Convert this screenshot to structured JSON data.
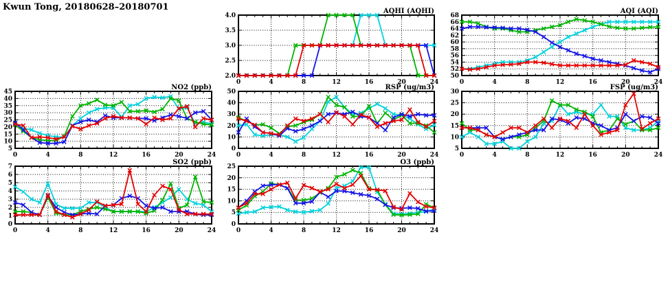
{
  "page_title": "Kwun Tong, 20180628–20180701",
  "colors": {
    "red": "#e60000",
    "green": "#00b400",
    "blue": "#1414e6",
    "cyan": "#00d2dc",
    "axis": "#000000"
  },
  "x_axis": {
    "min": 0,
    "max": 24,
    "major_ticks": [
      0,
      4,
      8,
      12,
      16,
      20,
      24
    ],
    "minor_step": 1,
    "unit": "hour"
  },
  "chart_data": [
    {
      "id": "aqhi",
      "type": "line",
      "title": "AQHI (AQHI)",
      "ylim": [
        2,
        4
      ],
      "yticks": [
        2,
        2.5,
        3,
        3.5,
        4
      ],
      "ytick_labels": [
        "2.0",
        "2.5",
        "3.0",
        "3.5",
        "4.0"
      ],
      "grid": "dotted",
      "legend": "none",
      "series": [
        {
          "name": "cyan",
          "color_key": "cyan",
          "values": [
            null,
            null,
            null,
            null,
            null,
            null,
            null,
            null,
            null,
            null,
            null,
            null,
            null,
            3,
            3,
            4,
            4,
            4,
            3,
            3,
            3,
            3,
            3,
            3,
            3
          ]
        },
        {
          "name": "green",
          "color_key": "green",
          "values": [
            2,
            2,
            2,
            2,
            2,
            2,
            2,
            3,
            3,
            3,
            3,
            4,
            4,
            4,
            4,
            3,
            3,
            3,
            3,
            3,
            3,
            3,
            2,
            2,
            2
          ]
        },
        {
          "name": "blue",
          "color_key": "blue",
          "values": [
            2,
            2,
            2,
            2,
            2,
            2,
            2,
            2,
            2,
            2,
            3,
            3,
            3,
            3,
            3,
            3,
            3,
            3,
            3,
            3,
            3,
            3,
            3,
            3,
            2
          ]
        },
        {
          "name": "red",
          "color_key": "red",
          "values": [
            2,
            2,
            2,
            2,
            2,
            2,
            2,
            2,
            3,
            3,
            3,
            3,
            3,
            3,
            3,
            3,
            3,
            3,
            3,
            3,
            3,
            3,
            3,
            2,
            2
          ]
        }
      ]
    },
    {
      "id": "aqi",
      "type": "line",
      "title": "AQI (AQI)",
      "ylim": [
        50,
        68
      ],
      "yticks": [
        50,
        52,
        54,
        56,
        58,
        60,
        62,
        64,
        66,
        68
      ],
      "ytick_labels": [
        "50",
        "52",
        "54",
        "56",
        "58",
        "60",
        "62",
        "64",
        "66",
        "68"
      ],
      "grid": "dotted",
      "legend": "none",
      "series": [
        {
          "name": "cyan",
          "color_key": "cyan",
          "values": [
            52,
            52,
            52.5,
            53,
            53.5,
            54,
            54,
            54,
            54.5,
            55.5,
            57,
            58.6,
            60,
            61.5,
            62.5,
            63.5,
            64.5,
            65.3,
            66,
            66,
            66,
            66,
            66,
            66,
            66
          ]
        },
        {
          "name": "green",
          "color_key": "green",
          "values": [
            66,
            66,
            65.5,
            64.5,
            64,
            64,
            63.5,
            63,
            63,
            63.5,
            64,
            64.5,
            65,
            66,
            66.8,
            66.4,
            66,
            65.3,
            64.6,
            64.2,
            64,
            64,
            64.2,
            64.4,
            64.5
          ]
        },
        {
          "name": "blue",
          "color_key": "blue",
          "values": [
            64,
            64.5,
            64.5,
            64.4,
            64.3,
            64.2,
            64,
            64,
            63.6,
            63,
            61.5,
            59.8,
            58.5,
            57.5,
            56.5,
            55.8,
            55,
            54.5,
            54,
            53.5,
            53,
            52.2,
            51.5,
            51,
            52
          ]
        },
        {
          "name": "red",
          "color_key": "red",
          "values": [
            52,
            51.8,
            52,
            52.5,
            53,
            53.2,
            53.3,
            53.5,
            54,
            54,
            53.8,
            53.4,
            53,
            53,
            53,
            53,
            53,
            53,
            53,
            53,
            53.2,
            54.5,
            54,
            53.5,
            52.5
          ]
        }
      ]
    },
    {
      "id": "no2",
      "type": "line",
      "title": "NO2 (ppb)",
      "ylim": [
        5,
        45
      ],
      "yticks": [
        5,
        10,
        15,
        20,
        25,
        30,
        35,
        40,
        45
      ],
      "ytick_labels": [
        "5",
        "10",
        "15",
        "20",
        "25",
        "30",
        "35",
        "40",
        "45"
      ],
      "grid": "dotted",
      "legend": "none",
      "series": [
        {
          "name": "cyan",
          "color_key": "cyan",
          "values": [
            22.5,
            19,
            18,
            15.5,
            14,
            13,
            13,
            21,
            26,
            30,
            32.5,
            33.5,
            33.5,
            27,
            35,
            36,
            40,
            41,
            40.5,
            41.5,
            32.5,
            33.5,
            22.5,
            23.5,
            22
          ]
        },
        {
          "name": "green",
          "color_key": "green",
          "values": [
            21.5,
            17,
            12.5,
            11,
            10.5,
            10.5,
            13.5,
            27.5,
            35,
            36.5,
            39,
            35.5,
            35,
            37.5,
            31,
            31,
            31.5,
            30.5,
            32.5,
            40,
            38.5,
            26,
            23.5,
            22,
            21.5
          ]
        },
        {
          "name": "blue",
          "color_key": "blue",
          "values": [
            23,
            18,
            12.5,
            9,
            8.5,
            8.5,
            9.5,
            21,
            23.5,
            25,
            23.5,
            28,
            26.5,
            26.5,
            26.5,
            26,
            26,
            24.5,
            26.5,
            28.5,
            27.5,
            26,
            30,
            31,
            25
          ]
        },
        {
          "name": "red",
          "color_key": "red",
          "values": [
            22,
            21,
            12.5,
            13,
            12.5,
            11.5,
            13,
            20.5,
            18.5,
            21,
            22.5,
            26,
            27.5,
            26.5,
            26.5,
            26,
            22,
            26.5,
            25,
            26,
            33,
            34.5,
            20,
            26,
            25
          ]
        }
      ]
    },
    {
      "id": "rsp",
      "type": "line",
      "title": "RSP (ug/m3)",
      "ylim": [
        0,
        50
      ],
      "yticks": [
        0,
        10,
        20,
        30,
        40,
        50
      ],
      "ytick_labels": [
        "0",
        "10",
        "20",
        "30",
        "40",
        "50"
      ],
      "grid": "dotted",
      "legend": "none",
      "series": [
        {
          "name": "cyan",
          "color_key": "cyan",
          "values": [
            20,
            21,
            12,
            11,
            12,
            12,
            10,
            6,
            9.5,
            17,
            24,
            41,
            45,
            36,
            30,
            31,
            35,
            39,
            35,
            30,
            29,
            26,
            21,
            17,
            20.5
          ]
        },
        {
          "name": "green",
          "color_key": "green",
          "values": [
            27,
            24,
            20.5,
            21,
            18,
            13,
            19,
            20,
            23,
            25,
            30,
            45,
            38,
            36,
            28,
            28,
            37,
            22,
            31,
            25,
            29,
            22,
            22,
            20,
            14
          ]
        },
        {
          "name": "blue",
          "color_key": "blue",
          "values": [
            14,
            26,
            19,
            14,
            13,
            11,
            17.5,
            15,
            17,
            20,
            24,
            30,
            31,
            30,
            32,
            28,
            27,
            22,
            16,
            27,
            30,
            28,
            30,
            29,
            29
          ]
        },
        {
          "name": "red",
          "color_key": "red",
          "values": [
            26,
            24,
            20.5,
            14,
            13,
            12,
            20,
            26,
            24,
            26,
            30,
            23,
            31.5,
            28,
            21,
            29.5,
            27,
            19,
            22,
            24,
            25,
            34,
            23,
            19,
            24
          ]
        }
      ]
    },
    {
      "id": "fsp",
      "type": "line",
      "title": "FSP (ug/m3)",
      "ylim": [
        5,
        30
      ],
      "yticks": [
        5,
        10,
        15,
        20,
        25,
        30
      ],
      "ytick_labels": [
        "5",
        "10",
        "15",
        "20",
        "25",
        "30"
      ],
      "grid": "dotted",
      "legend": "none",
      "series": [
        {
          "name": "cyan",
          "color_key": "cyan",
          "values": [
            10,
            12,
            10,
            7,
            7,
            8,
            5,
            5,
            8,
            10,
            16,
            17,
            24,
            20,
            21,
            20,
            20,
            24,
            19,
            19,
            14,
            13,
            13,
            14,
            17
          ]
        },
        {
          "name": "green",
          "color_key": "green",
          "values": [
            16,
            13,
            13,
            11,
            10,
            9,
            10,
            10,
            11,
            14,
            17,
            26,
            24,
            24,
            22,
            21,
            19,
            12,
            13,
            18,
            15.5,
            17,
            13,
            13,
            14
          ]
        },
        {
          "name": "blue",
          "color_key": "blue",
          "values": [
            14,
            14,
            14,
            14,
            10,
            9,
            10,
            11,
            12,
            13,
            13,
            18,
            17.5,
            16,
            18.5,
            18,
            16,
            15,
            13,
            14,
            20,
            17,
            19,
            18.5,
            16
          ]
        },
        {
          "name": "red",
          "color_key": "red",
          "values": [
            14,
            14,
            13,
            11,
            10,
            12,
            14,
            14,
            12,
            15,
            18,
            14,
            18,
            17,
            14,
            20,
            15,
            11,
            12,
            13,
            24,
            29,
            13.5,
            16,
            18
          ]
        }
      ]
    },
    {
      "id": "so2",
      "type": "line",
      "title": "SO2 (ppb)",
      "ylim": [
        0,
        7
      ],
      "yticks": [
        0,
        1,
        2,
        3,
        4,
        5,
        6,
        7
      ],
      "ytick_labels": [
        "0",
        "1",
        "2",
        "3",
        "4",
        "5",
        "6",
        "7"
      ],
      "grid": "dotted",
      "legend": "none",
      "series": [
        {
          "name": "cyan",
          "color_key": "cyan",
          "values": [
            4.5,
            3.9,
            3,
            2.6,
            4.9,
            2.4,
            1.9,
            1.9,
            1.9,
            2.6,
            2.6,
            2,
            1.5,
            1.5,
            1.5,
            1.5,
            1.5,
            2,
            2.6,
            3.2,
            4.2,
            3,
            2.5,
            2.3,
            1.5
          ]
        },
        {
          "name": "green",
          "color_key": "green",
          "values": [
            1.5,
            1.5,
            1.4,
            1.1,
            3.2,
            1.3,
            1.1,
            1.1,
            1.5,
            1.8,
            2,
            1.8,
            1.5,
            1.5,
            1.5,
            1.5,
            1.3,
            1.6,
            2.9,
            4.9,
            1.9,
            2.3,
            5.7,
            2.7,
            2.6
          ]
        },
        {
          "name": "blue",
          "color_key": "blue",
          "values": [
            2.6,
            2.3,
            1.4,
            1.1,
            3.4,
            2,
            1.4,
            1.1,
            1.2,
            1.3,
            1.2,
            2.2,
            2.3,
            3.1,
            3.4,
            3.1,
            2.2,
            1.9,
            2,
            1.5,
            1.5,
            1.5,
            1.2,
            1.1,
            1.1
          ]
        },
        {
          "name": "red",
          "color_key": "red",
          "values": [
            1.1,
            1.1,
            1.1,
            1.1,
            3.5,
            1.5,
            1.1,
            0.8,
            1.2,
            1.7,
            2.7,
            2.2,
            2.3,
            2.4,
            6.5,
            2.4,
            1.5,
            3.5,
            4.6,
            4.2,
            1.7,
            1.2,
            1.2,
            1.2,
            1.2
          ]
        }
      ]
    },
    {
      "id": "o3",
      "type": "line",
      "title": "O3 (ppb)",
      "ylim": [
        0,
        25
      ],
      "yticks": [
        0,
        5,
        10,
        15,
        20,
        25
      ],
      "ytick_labels": [
        "0",
        "5",
        "10",
        "15",
        "20",
        "25"
      ],
      "grid": "dotted",
      "legend": "none",
      "series": [
        {
          "name": "cyan",
          "color_key": "cyan",
          "values": [
            4.5,
            5,
            5.3,
            7,
            7.3,
            7.5,
            6,
            5.3,
            5,
            5.5,
            6,
            8.8,
            15.5,
            16.5,
            18.5,
            24.5,
            24.5,
            13.8,
            8.5,
            4.5,
            4.3,
            4.5,
            5,
            5.3,
            6.5
          ]
        },
        {
          "name": "green",
          "color_key": "green",
          "values": [
            6,
            8,
            12,
            14,
            17.5,
            17,
            15.5,
            10.3,
            10.3,
            11,
            13.5,
            15.5,
            20.3,
            21.5,
            23.3,
            22,
            15.3,
            14.7,
            8.3,
            4,
            3.8,
            4,
            4.3,
            8.5,
            7
          ]
        },
        {
          "name": "blue",
          "color_key": "blue",
          "values": [
            7,
            10,
            14,
            16.5,
            17,
            17,
            15.5,
            9,
            9,
            9.7,
            13.8,
            11.7,
            14.3,
            14.2,
            13.5,
            12.8,
            12.3,
            10.8,
            8.3,
            7,
            6.8,
            7,
            6.7,
            5.5,
            5.7
          ]
        },
        {
          "name": "red",
          "color_key": "red",
          "values": [
            7,
            9,
            13,
            13,
            15,
            17,
            17.8,
            11,
            16.8,
            15.5,
            14,
            15,
            17.3,
            15.5,
            17,
            20.8,
            15,
            14.8,
            14.3,
            7.3,
            6.3,
            13.2,
            9.5,
            7.5,
            7
          ]
        }
      ]
    }
  ]
}
